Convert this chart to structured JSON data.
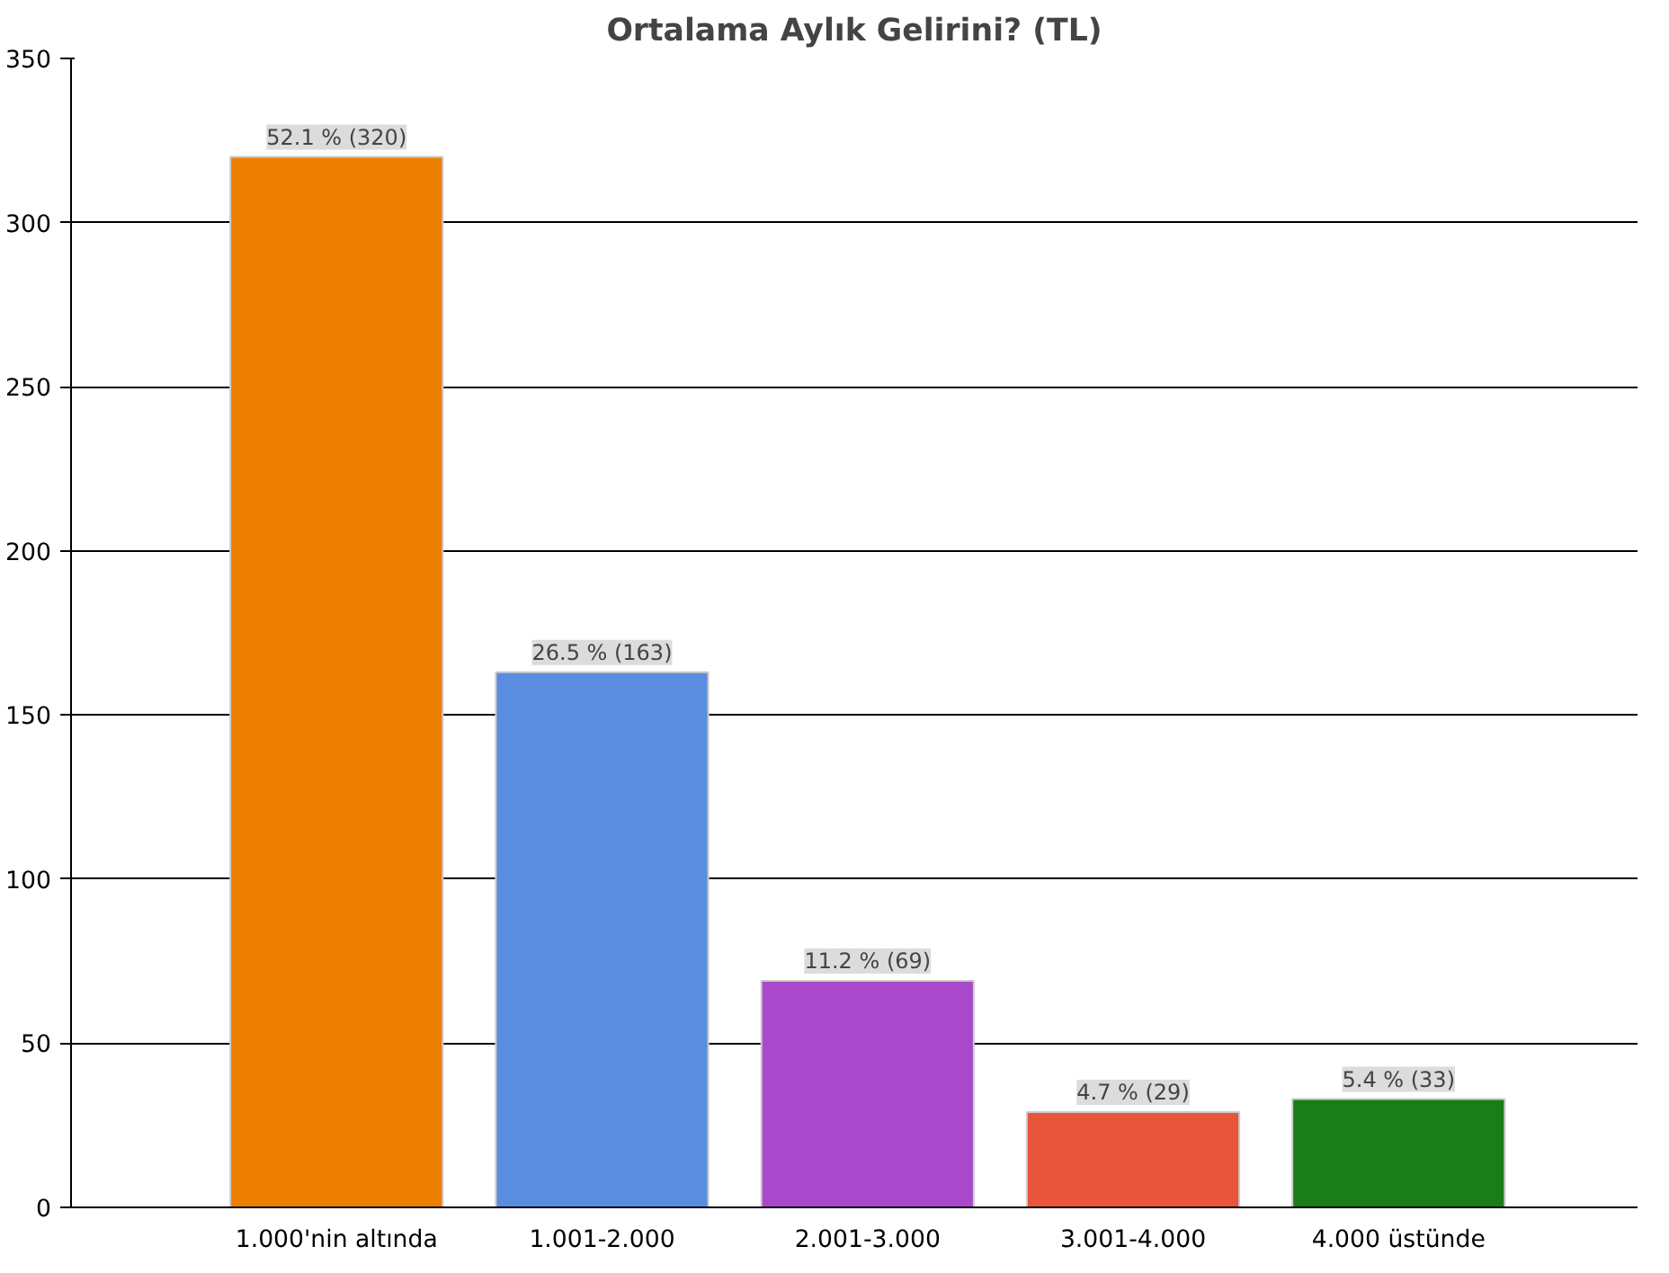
{
  "chart_data": {
    "type": "bar",
    "title": "Ortalama Aylık Gelirini? (TL)",
    "categories": [
      "1.000'nin altında",
      "1.001-2.000",
      "2.001-3.000",
      "3.001-4.000",
      "4.000 üstünde"
    ],
    "values": [
      320,
      163,
      69,
      29,
      33
    ],
    "colors": [
      "#ec7f00",
      "#5a8ce0",
      "#aa48cc",
      "#e8553a",
      "#1a7d1a"
    ],
    "value_labels": [
      "52.1 % (320)",
      "26.5 % (163)",
      "11.2 % (69)",
      "4.7 % (29)",
      "5.4 % (33)"
    ],
    "ylim": [
      0,
      350
    ],
    "yticks": [
      0,
      50,
      100,
      150,
      200,
      250,
      300,
      350
    ],
    "grid": "y"
  }
}
